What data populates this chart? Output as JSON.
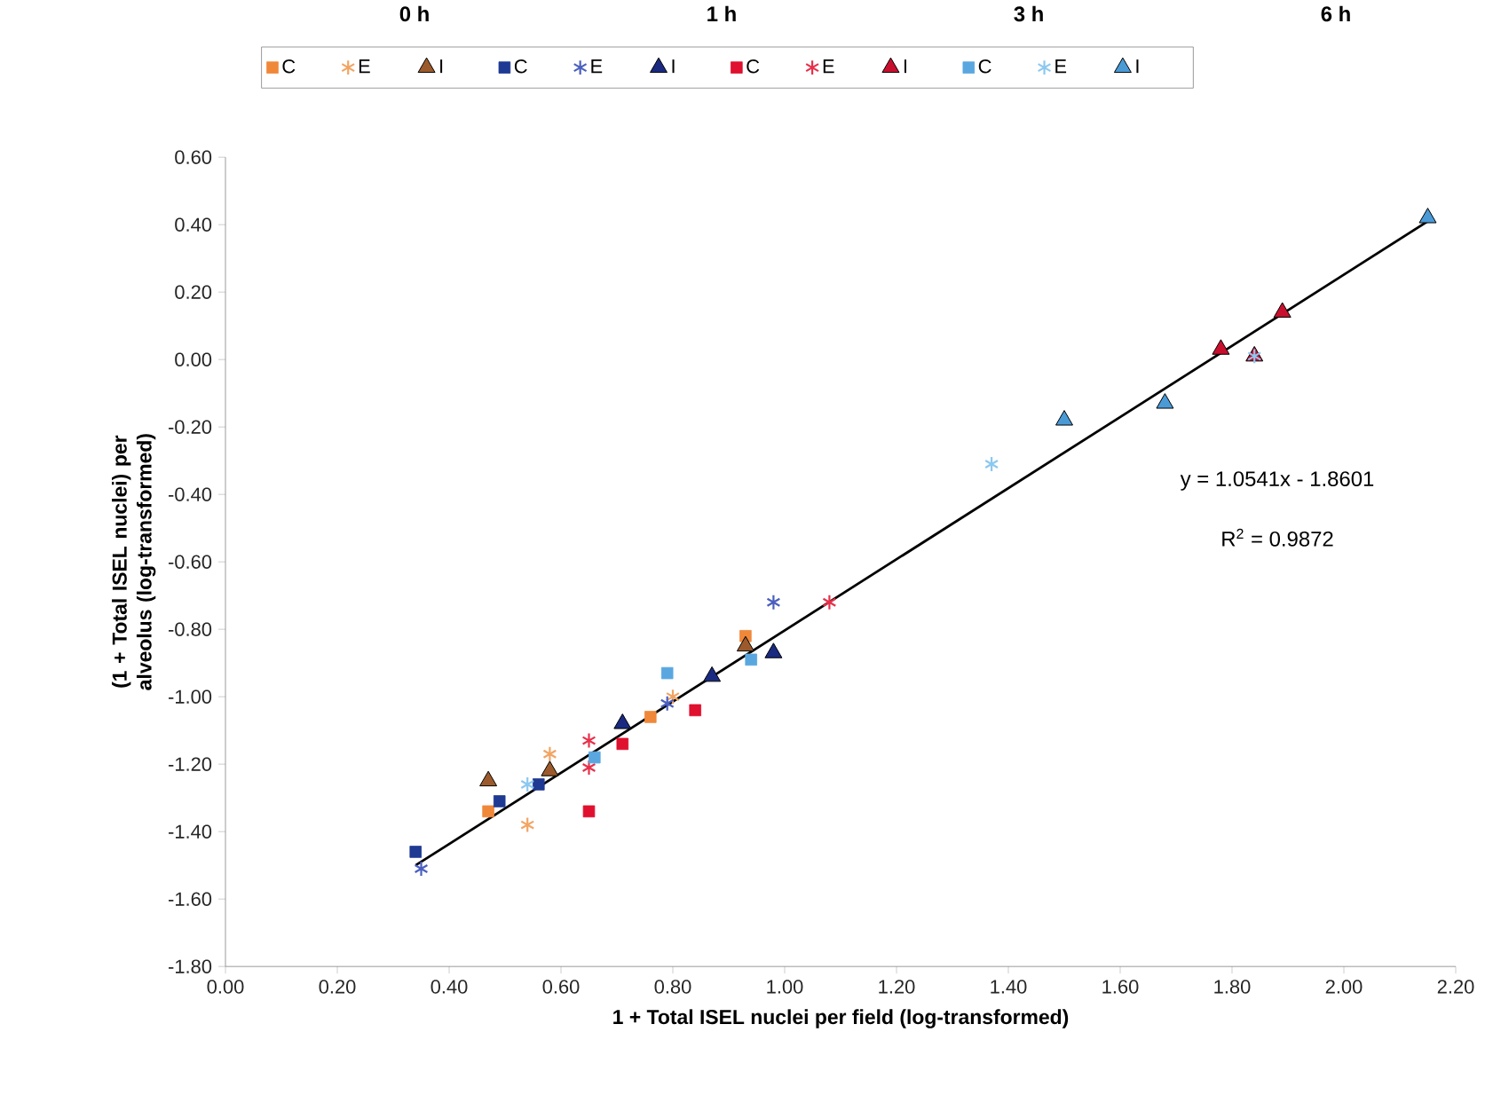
{
  "chart_data": {
    "type": "scatter",
    "xlabel": "1 + Total ISEL nuclei per field (log-transformed)",
    "ylabel": "(1 + Total ISEL nuclei) per alveolus (log-transformed)",
    "xlim": [
      0,
      2.2
    ],
    "ylim": [
      -1.8,
      0.6
    ],
    "xticks": [
      {
        "value": 0,
        "label": "0.00"
      },
      {
        "value": 0.2,
        "label": "0.20"
      },
      {
        "value": 0.4,
        "label": "0.40"
      },
      {
        "value": 0.6,
        "label": "0.60"
      },
      {
        "value": 0.8,
        "label": "0.80"
      },
      {
        "value": 1.0,
        "label": "1.00"
      },
      {
        "value": 1.2,
        "label": "1.20"
      },
      {
        "value": 1.4,
        "label": "1.40"
      },
      {
        "value": 1.6,
        "label": "1.60"
      },
      {
        "value": 1.8,
        "label": "1.80"
      },
      {
        "value": 2.0,
        "label": "2.00"
      },
      {
        "value": 2.2,
        "label": "2.20"
      }
    ],
    "yticks": [
      {
        "value": -1.8,
        "label": "-1.80"
      },
      {
        "value": -1.6,
        "label": "-1.60"
      },
      {
        "value": -1.4,
        "label": "-1.40"
      },
      {
        "value": -1.2,
        "label": "-1.20"
      },
      {
        "value": -1.0,
        "label": "-1.00"
      },
      {
        "value": -0.8,
        "label": "-0.80"
      },
      {
        "value": -0.6,
        "label": "-0.60"
      },
      {
        "value": -0.4,
        "label": "-0.40"
      },
      {
        "value": -0.2,
        "label": "-0.20"
      },
      {
        "value": 0,
        "label": "0.00"
      },
      {
        "value": 0.2,
        "label": "0.20"
      },
      {
        "value": 0.4,
        "label": "0.40"
      },
      {
        "value": 0.6,
        "label": "0.60"
      }
    ],
    "grid": false,
    "legend": "top",
    "annotations": [
      "0 h",
      "1 h",
      "3 h",
      "6 h",
      "y = 1.0541x - 1.8601",
      "R$^{2}$ = 0.9872"
    ],
    "series": [
      {
        "name": "C",
        "color": "#f0883a",
        "marker": "square",
        "x": [
          0.47,
          0.76,
          0.93
        ],
        "values": [
          -1.34,
          -1.06,
          -0.82
        ]
      },
      {
        "name": "E",
        "color": "#f2a463",
        "marker": "cross",
        "x": [
          0.54,
          0.58,
          0.8
        ],
        "values": [
          -1.38,
          -1.17,
          -1.0
        ]
      },
      {
        "name": "I",
        "color": "#9c5a2c",
        "marker": "triangle",
        "x": [
          0.47,
          0.58,
          0.93
        ],
        "values": [
          -1.25,
          -1.22,
          -0.85
        ]
      },
      {
        "name": "C",
        "color": "#1f3a93",
        "marker": "square",
        "x": [
          0.34,
          0.49,
          0.56
        ],
        "values": [
          -1.46,
          -1.31,
          -1.26
        ]
      },
      {
        "name": "E",
        "color": "#4a5fbf",
        "marker": "cross",
        "x": [
          0.35,
          0.79,
          0.98
        ],
        "values": [
          -1.51,
          -1.02,
          -0.72
        ]
      },
      {
        "name": "I",
        "color": "#1a2a80",
        "marker": "triangle",
        "x": [
          0.71,
          0.87,
          0.98
        ],
        "values": [
          -1.08,
          -0.94,
          -0.87
        ]
      },
      {
        "name": "C",
        "color": "#e0102f",
        "marker": "square",
        "x": [
          0.65,
          0.71,
          0.84
        ],
        "values": [
          -1.34,
          -1.14,
          -1.04
        ]
      },
      {
        "name": "E",
        "color": "#e8304a",
        "marker": "cross",
        "x": [
          0.65,
          0.65,
          1.08
        ],
        "values": [
          -1.13,
          -1.21,
          -0.72
        ]
      },
      {
        "name": "I",
        "color": "#c8102e",
        "marker": "triangle",
        "x": [
          1.78,
          1.84,
          1.89
        ],
        "values": [
          0.03,
          0.01,
          0.14
        ]
      },
      {
        "name": "C",
        "color": "#5aa7e0",
        "marker": "square",
        "x": [
          0.66,
          0.79,
          0.94
        ],
        "values": [
          -1.18,
          -0.93,
          -0.89
        ]
      },
      {
        "name": "E",
        "color": "#8cc8f0",
        "marker": "cross",
        "x": [
          0.54,
          1.37,
          1.84
        ],
        "values": [
          -1.26,
          -0.31,
          0.01
        ]
      },
      {
        "name": "I",
        "color": "#4a9ad6",
        "marker": "triangle",
        "x": [
          1.5,
          1.68,
          2.15
        ],
        "values": [
          -0.18,
          -0.13,
          0.42
        ]
      },
      {
        "type": "line",
        "color": "#000000",
        "marker": "none",
        "line_style": "solid",
        "x": [
          0.34,
          2.15
        ],
        "values": [
          -1.5,
          0.41
        ]
      }
    ]
  }
}
